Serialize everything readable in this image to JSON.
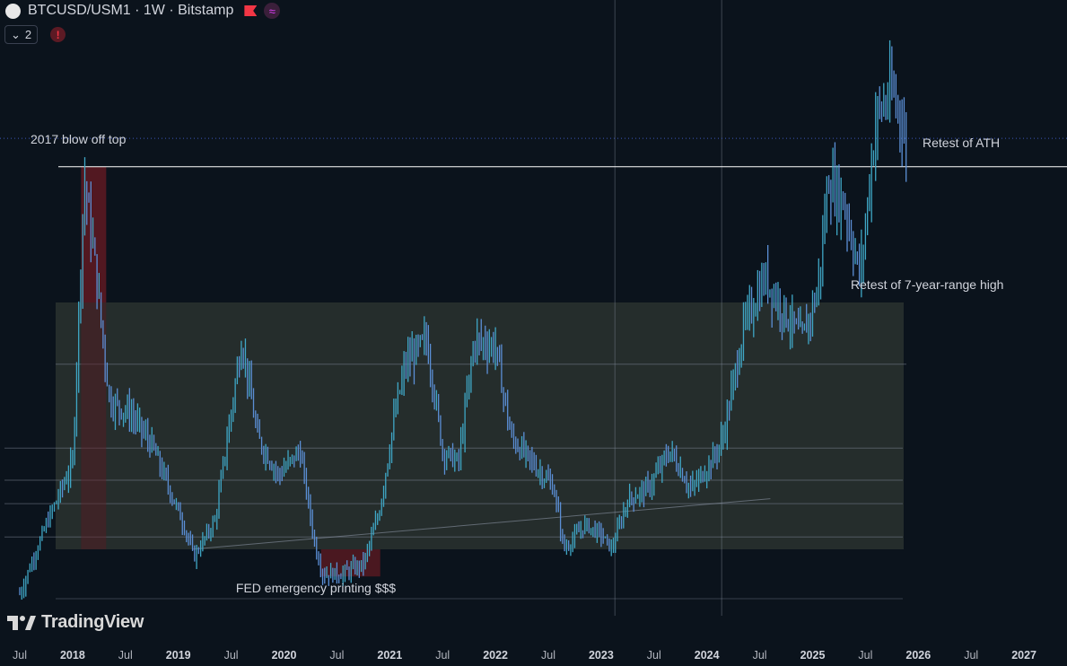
{
  "header": {
    "symbol_title": "BTCUSD/USM1 · 1W · Bitstamp",
    "collapse_count": "2",
    "warn_glyph": "!"
  },
  "branding": {
    "logo_text": "TradingView"
  },
  "colors": {
    "background": "#0b131c",
    "candle": "#5b8fd6",
    "candle_alt": "#3fa7c6",
    "range_box": "#2a332f",
    "highlight_red": "#5a1a22",
    "guide": "#8a93a3",
    "ath_line": "#ffffff",
    "dotted_line": "#3c56b8"
  },
  "chart_data": {
    "type": "line",
    "subtype": "candlestick-weekly",
    "symbol": "BTCUSD/USM1",
    "interval": "1W",
    "exchange": "Bitstamp",
    "unit": "BTC price measured in US M1 money supply (no price scale shown)",
    "x_tick_labels": [
      "Jul",
      "2018",
      "Jul",
      "2019",
      "Jul",
      "2020",
      "Jul",
      "2021",
      "Jul",
      "2022",
      "Jul",
      "2023",
      "Jul",
      "2024",
      "Jul",
      "2025",
      "Jul",
      "2026",
      "Jul",
      "2027"
    ],
    "x_range": [
      2017.35,
      2027.3
    ],
    "approx_series": {
      "note": "relative level, 0 = lower range bound, 100 = upper range bound (7-year range top)",
      "x": [
        2017.35,
        2017.6,
        2017.85,
        2017.96,
        2018.05,
        2018.2,
        2018.4,
        2018.6,
        2018.9,
        2019.0,
        2019.2,
        2019.45,
        2019.6,
        2019.8,
        2020.0,
        2020.15,
        2020.22,
        2020.4,
        2020.6,
        2020.75,
        2020.9,
        2021.0,
        2021.2,
        2021.35,
        2021.5,
        2021.65,
        2021.85,
        2022.0,
        2022.2,
        2022.4,
        2022.5,
        2022.7,
        2022.85,
        2022.95,
        2023.1,
        2023.3,
        2023.5,
        2023.7,
        2023.9,
        2024.0,
        2024.2,
        2024.4,
        2024.6,
        2024.75,
        2024.9,
        2025.0,
        2025.15,
        2025.3,
        2025.45,
        2025.6,
        2025.7,
        2025.75
      ],
      "y": [
        -18,
        10,
        35,
        150,
        120,
        60,
        55,
        42,
        10,
        -3,
        12,
        85,
        45,
        30,
        40,
        0,
        -10,
        -10,
        -6,
        15,
        55,
        75,
        85,
        40,
        35,
        85,
        82,
        45,
        35,
        25,
        0,
        10,
        6,
        0,
        20,
        25,
        40,
        24,
        36,
        45,
        90,
        110,
        95,
        85,
        105,
        150,
        140,
        110,
        175,
        185,
        175,
        150
      ]
    },
    "annotations": [
      "2017 blow off top",
      "FED emergency printing $$$",
      "Retest of ATH",
      "Retest of 7-year-range high"
    ],
    "grid": false,
    "legend": "none"
  }
}
